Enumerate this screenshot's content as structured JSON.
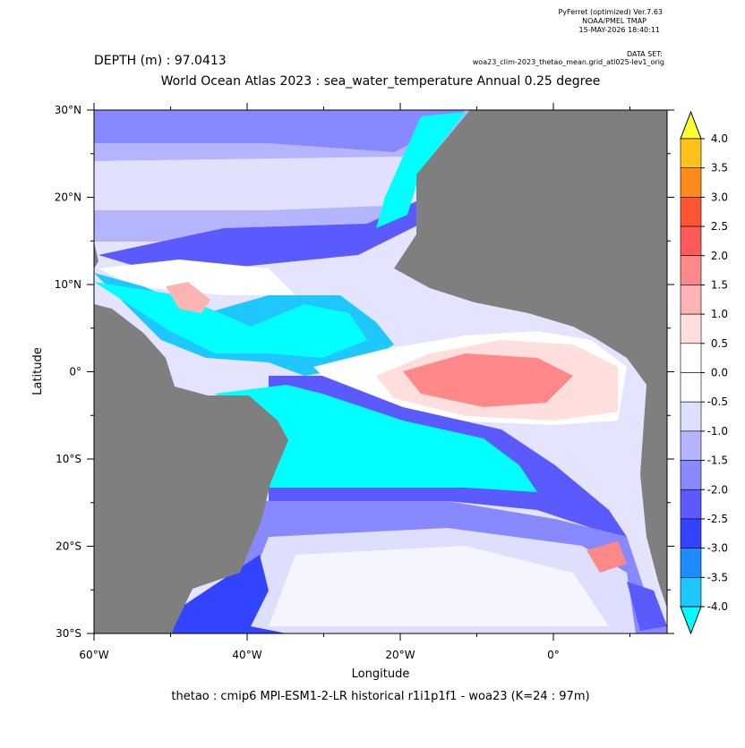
{
  "header": {
    "program": "PyFerret (optimized) Ver.7.63",
    "organization": "NOAA/PMEL TMAP",
    "timestamp": "15-MAY-2026 18:40:11",
    "dataset_label": "DATA SET:",
    "dataset": "woa23_clim-2023_thetao_mean.grid_atl025-lev1_orig"
  },
  "depth": "DEPTH (m) : 97.0413",
  "title": "World Ocean Atlas 2023 : sea_water_temperature Annual  0.25 degree",
  "x_axis": {
    "label": "Longitude",
    "ticks": [
      "60°W",
      "40°W",
      "20°W",
      "0°"
    ]
  },
  "y_axis": {
    "label": "Latitude",
    "ticks": [
      "30°N",
      "20°N",
      "10°N",
      "0°",
      "10°S",
      "20°S",
      "30°S"
    ]
  },
  "colorbar": {
    "labels": [
      "4.0",
      "3.5",
      "3.0",
      "2.5",
      "2.0",
      "1.5",
      "1.0",
      "0.5",
      "0.0",
      "-0.5",
      "-1.0",
      "-1.5",
      "-2.0",
      "-2.5",
      "-3.0",
      "-3.5",
      "-4.0"
    ],
    "colors": [
      "#ffff33",
      "#ffc21a",
      "#ff8c1a",
      "#ff5533",
      "#ff5a5a",
      "#ff8888",
      "#ffb4b4",
      "#ffdede",
      "#ffffff",
      "#ffffff",
      "#dedeff",
      "#b4b4ff",
      "#8888ff",
      "#5a5aff",
      "#3344ff",
      "#1e8cff",
      "#1ec8ff",
      "#00ffff"
    ]
  },
  "footer": "thetao : cmip6 MPI-ESM1-2-LR historical r1i1p1f1 - woa23  (K=24 : 97m)"
}
